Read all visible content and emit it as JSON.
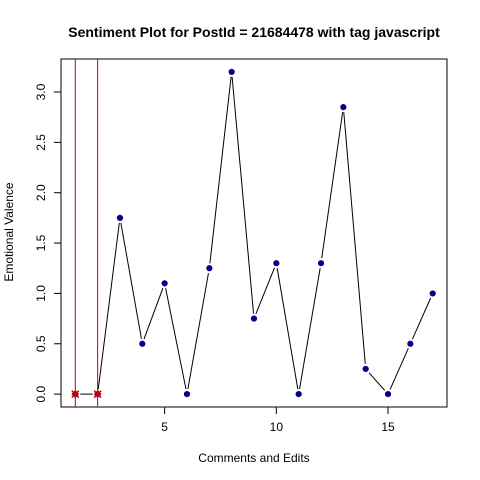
{
  "chart_data": {
    "type": "line",
    "title": "Sentiment Plot for PostId =  21684478  with tag  javascript",
    "xlabel": "Comments and Edits",
    "ylabel": "Emotional Valence",
    "xlim": [
      0.36,
      17.64
    ],
    "ylim": [
      -0.128,
      3.328
    ],
    "x_ticks": [
      5,
      10,
      15
    ],
    "y_ticks": [
      0.0,
      0.5,
      1.0,
      1.5,
      2.0,
      2.5,
      3.0
    ],
    "y_tick_labels": [
      "0.0",
      "0.5",
      "1.0",
      "1.5",
      "2.0",
      "2.5",
      "3.0"
    ],
    "x": [
      1,
      2,
      3,
      4,
      5,
      6,
      7,
      8,
      9,
      10,
      11,
      12,
      13,
      14,
      15,
      16,
      17
    ],
    "y": [
      0,
      0,
      1.75,
      0.5,
      1.1,
      0,
      1.25,
      3.2,
      0.75,
      1.3,
      0,
      1.3,
      2.85,
      0.25,
      0,
      0.5,
      1.0
    ],
    "point_color": "#00008b",
    "line_color": "#000000",
    "highlight_points": [
      {
        "x": 1,
        "y": 0
      },
      {
        "x": 2,
        "y": 0
      }
    ],
    "highlight_color": "#cc0000",
    "vertical_lines": [
      1,
      2
    ],
    "vertical_line_color": "#cc0000"
  }
}
